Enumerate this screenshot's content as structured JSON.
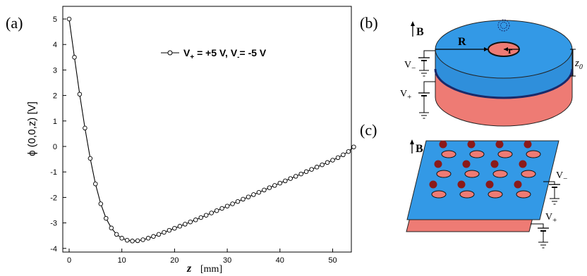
{
  "panels": {
    "a": {
      "label": "(a)"
    },
    "b": {
      "label": "(b)",
      "field_label": "B",
      "radius_big": "R",
      "radius_small": "r",
      "gap_label": "z",
      "gap_sub": "0",
      "v_minus": "V",
      "v_minus_sub": "−",
      "v_plus": "V",
      "v_plus_sub": "+"
    },
    "c": {
      "label": "(c)",
      "field_label": "B",
      "v_minus": "V",
      "v_minus_sub": "−",
      "v_plus": "V",
      "v_plus_sub": "+"
    }
  },
  "colors": {
    "top_plate": "#3399e6",
    "bottom_plate": "#ee7b74",
    "dot": "#8b1a1a",
    "line": "#000000"
  },
  "chart_data": {
    "type": "line",
    "xlabel_var": "z",
    "xlabel_unit": "[mm]",
    "ylabel": "ϕ (0,0,z)   [V]",
    "xlim": [
      0,
      56
    ],
    "ylim": [
      -4,
      5
    ],
    "xticks": [
      "0",
      "10",
      "20",
      "30",
      "40",
      "50"
    ],
    "yticks": [
      "5",
      "4",
      "3",
      "2",
      "1",
      "0",
      "-1",
      "-2",
      "-3",
      "-4"
    ],
    "legend": {
      "location": "upper-right",
      "parts": [
        "V",
        "+",
        " = +5 V, V",
        "-",
        "= -5 V"
      ]
    },
    "series": [
      {
        "marker": "open-circle",
        "x": [
          0,
          1,
          2,
          3,
          4,
          5,
          6,
          7,
          8,
          9,
          10,
          11,
          12,
          13,
          14,
          15,
          16,
          17,
          18,
          19,
          20,
          21,
          22,
          23,
          24,
          25,
          26,
          27,
          28,
          29,
          30,
          31,
          32,
          33,
          34,
          35,
          36,
          37,
          38,
          39,
          40,
          41,
          42,
          43,
          44,
          45,
          46,
          47,
          48,
          49,
          50,
          51,
          52,
          53,
          54
        ],
        "y": [
          5.0,
          3.5,
          2.05,
          0.72,
          -0.47,
          -1.47,
          -2.25,
          -2.82,
          -3.2,
          -3.45,
          -3.6,
          -3.68,
          -3.71,
          -3.7,
          -3.66,
          -3.6,
          -3.53,
          -3.45,
          -3.37,
          -3.29,
          -3.21,
          -3.13,
          -3.05,
          -2.96,
          -2.88,
          -2.79,
          -2.7,
          -2.61,
          -2.52,
          -2.43,
          -2.34,
          -2.25,
          -2.16,
          -2.07,
          -1.98,
          -1.89,
          -1.8,
          -1.71,
          -1.62,
          -1.53,
          -1.44,
          -1.35,
          -1.26,
          -1.17,
          -1.08,
          -0.99,
          -0.9,
          -0.81,
          -0.72,
          -0.63,
          -0.54,
          -0.44,
          -0.33,
          -0.2,
          -0.02
        ]
      }
    ]
  }
}
